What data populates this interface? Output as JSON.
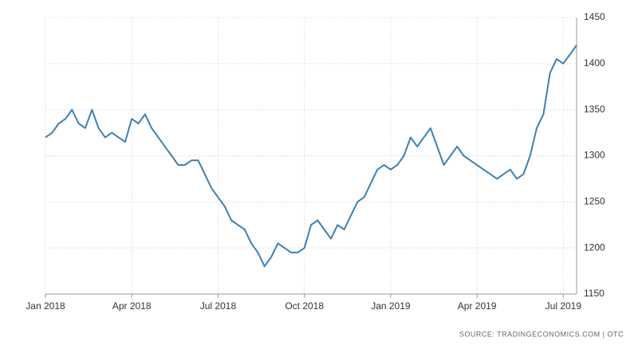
{
  "chart_data": {
    "type": "line",
    "source": "SOURCE: TRADINGECONOMICS.COM | OTC",
    "categories": [
      "Jan 2018",
      null,
      null,
      null,
      null,
      null,
      null,
      null,
      null,
      null,
      null,
      null,
      null,
      "Apr 2018",
      null,
      null,
      null,
      null,
      null,
      null,
      null,
      null,
      null,
      null,
      null,
      null,
      "Jul 2018",
      null,
      null,
      null,
      null,
      null,
      null,
      null,
      null,
      null,
      null,
      null,
      null,
      "Oct 2018",
      null,
      null,
      null,
      null,
      null,
      null,
      null,
      null,
      null,
      null,
      null,
      null,
      "Jan 2019",
      null,
      null,
      null,
      null,
      null,
      null,
      null,
      null,
      null,
      null,
      null,
      null,
      "Apr 2019",
      null,
      null,
      null,
      null,
      null,
      null,
      null,
      null,
      null,
      null,
      null,
      null,
      "Jul 2019",
      null,
      null
    ],
    "series": [
      {
        "color": "#3d7fb3",
        "values": [
          1320,
          1325,
          1335,
          1340,
          1350,
          1335,
          1330,
          1350,
          1330,
          1320,
          1325,
          1320,
          1315,
          1340,
          1335,
          1345,
          1330,
          1320,
          1310,
          1300,
          1290,
          1290,
          1295,
          1295,
          1280,
          1265,
          1255,
          1245,
          1230,
          1225,
          1220,
          1205,
          1195,
          1180,
          1190,
          1205,
          1200,
          1195,
          1195,
          1200,
          1225,
          1230,
          1220,
          1210,
          1225,
          1220,
          1235,
          1250,
          1255,
          1270,
          1285,
          1290,
          1285,
          1290,
          1300,
          1320,
          1310,
          1320,
          1330,
          1310,
          1290,
          1300,
          1310,
          1300,
          1295,
          1290,
          1285,
          1280,
          1275,
          1280,
          1285,
          1275,
          1280,
          1300,
          1330,
          1345,
          1390,
          1405,
          1400,
          1410,
          1420
        ]
      }
    ],
    "ylim": [
      1150,
      1450
    ],
    "yticks": [
      1150,
      1200,
      1250,
      1300,
      1350,
      1400,
      1450
    ],
    "grid": true
  }
}
